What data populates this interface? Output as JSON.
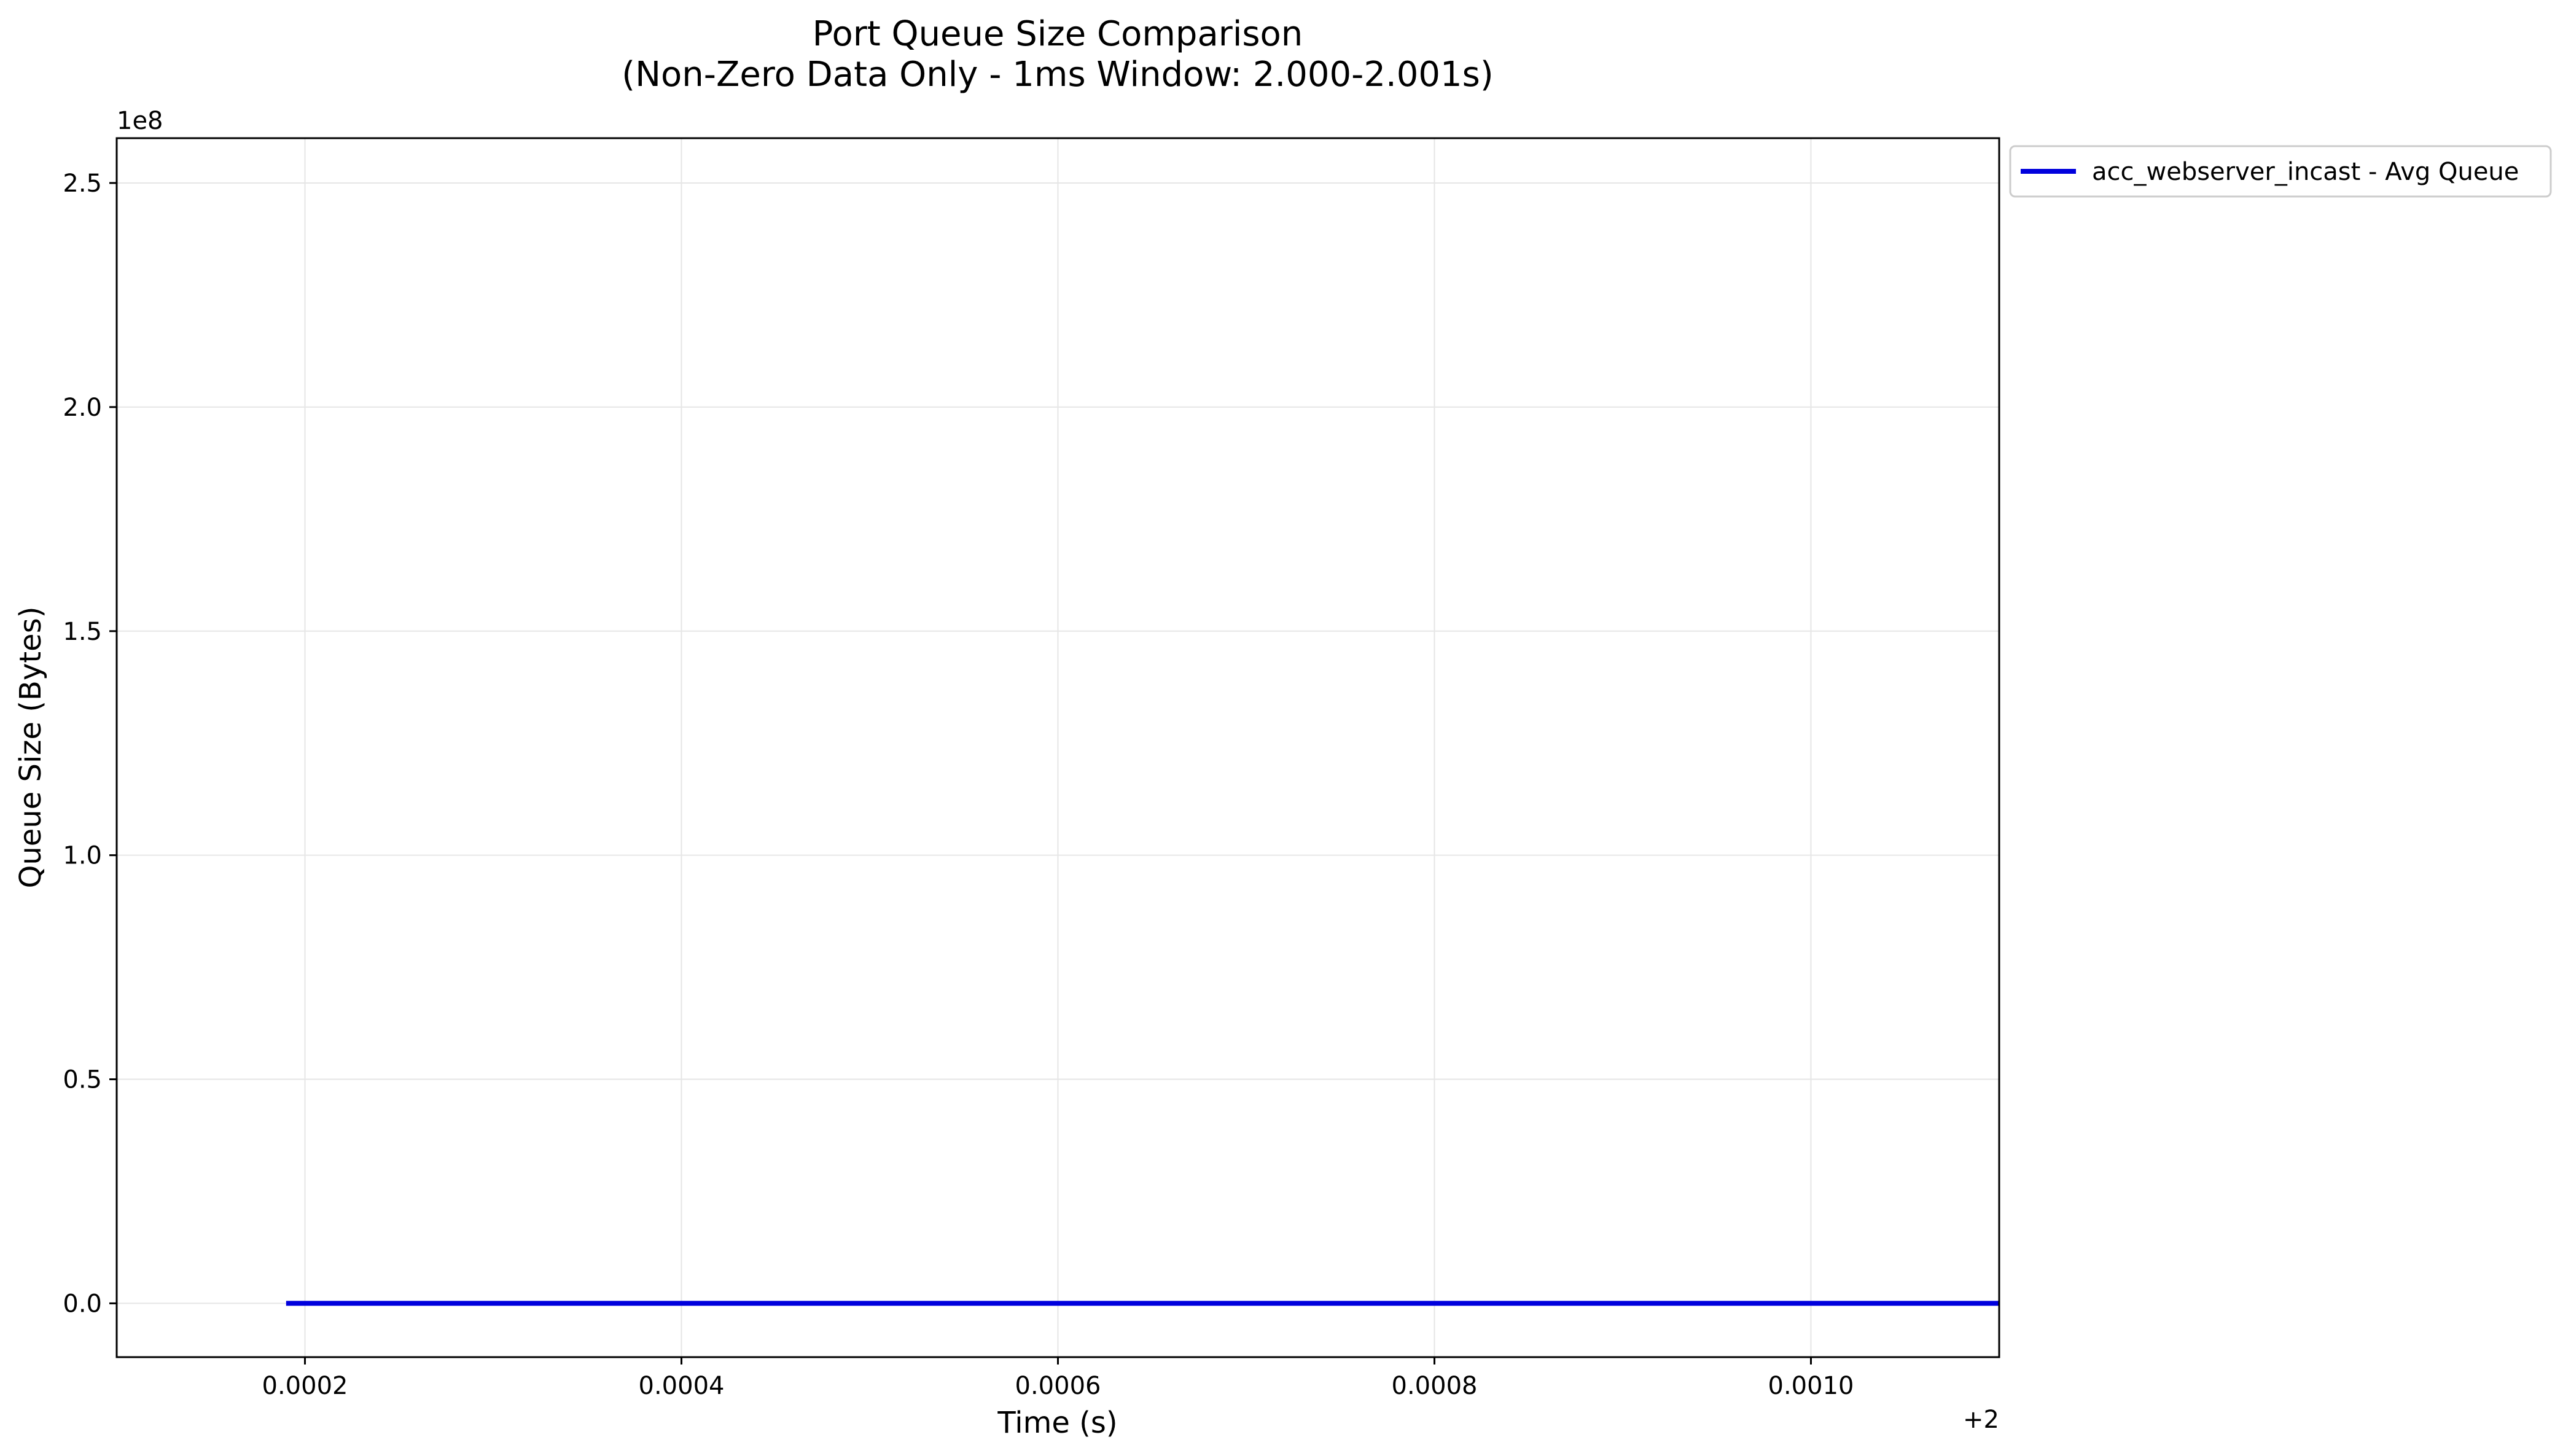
{
  "chart_data": {
    "type": "line",
    "title": "Port Queue Size Comparison",
    "subtitle": "(Non-Zero Data Only - 1ms Window: 2.000-2.001s)",
    "xlabel": "Time (s)",
    "ylabel": "Queue Size (Bytes)",
    "x_offset_label": "+2",
    "y_scale_label": "1e8",
    "xlim": [
      0.0001,
      0.0011
    ],
    "ylim": [
      -0.12,
      2.6
    ],
    "x_ticks": [
      0.0002,
      0.0004,
      0.0006,
      0.0008,
      0.001
    ],
    "x_tick_labels": [
      "0.0002",
      "0.0004",
      "0.0006",
      "0.0008",
      "0.0010"
    ],
    "y_ticks": [
      0.0,
      0.5,
      1.0,
      1.5,
      2.0,
      2.5
    ],
    "y_tick_labels": [
      "0.0",
      "0.5",
      "1.0",
      "1.5",
      "2.0",
      "2.5"
    ],
    "grid": true,
    "legend": "outside-top-right",
    "series": [
      {
        "name": "acc_webserver_incast - Avg Queue",
        "color": "#0000dd",
        "x": [
          0.00019,
          0.0011
        ],
        "y": [
          0.0,
          0.0
        ]
      }
    ]
  }
}
